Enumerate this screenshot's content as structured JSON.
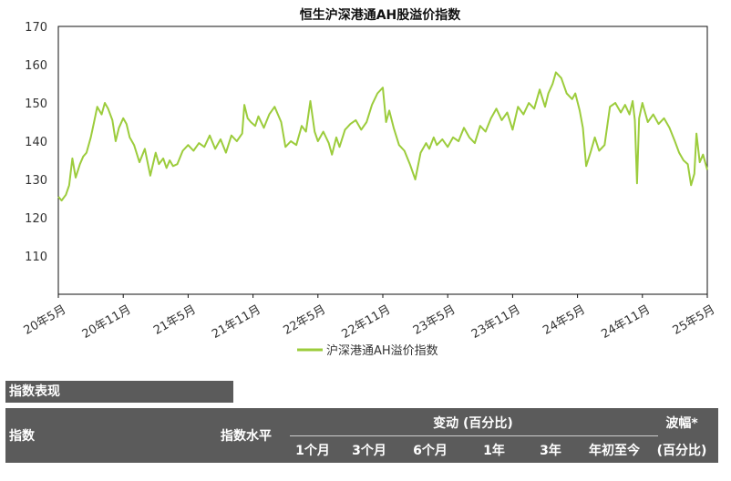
{
  "chart_data": {
    "type": "line",
    "title": "恒生沪深港通AH股溢价指数",
    "ylim": [
      100,
      170
    ],
    "yticks": [
      110,
      120,
      130,
      140,
      150,
      160,
      170
    ],
    "xlim": [
      0,
      60
    ],
    "xticks": [
      {
        "x": 0,
        "label": "20年5月"
      },
      {
        "x": 6,
        "label": "20年11月"
      },
      {
        "x": 12,
        "label": "21年5月"
      },
      {
        "x": 18,
        "label": "21年11月"
      },
      {
        "x": 24,
        "label": "22年5月"
      },
      {
        "x": 30,
        "label": "22年11月"
      },
      {
        "x": 36,
        "label": "23年5月"
      },
      {
        "x": 42,
        "label": "23年11月"
      },
      {
        "x": 48,
        "label": "24年5月"
      },
      {
        "x": 54,
        "label": "24年11月"
      },
      {
        "x": 60,
        "label": "25年5月"
      }
    ],
    "grid": false,
    "legend": "bottom-center",
    "series": [
      {
        "name": "沪深港通AH溢价指数",
        "color": "#9ccc3c",
        "x": [
          0,
          0.3,
          0.7,
          1.0,
          1.3,
          1.6,
          2.0,
          2.3,
          2.6,
          3.0,
          3.3,
          3.6,
          4.0,
          4.3,
          4.6,
          5.0,
          5.3,
          5.6,
          6.0,
          6.3,
          6.6,
          7.0,
          7.5,
          8.0,
          8.5,
          9.0,
          9.3,
          9.7,
          10.0,
          10.3,
          10.6,
          11.0,
          11.5,
          12.0,
          12.5,
          13.0,
          13.5,
          14.0,
          14.5,
          15.0,
          15.5,
          16.0,
          16.5,
          17.0,
          17.2,
          17.5,
          17.8,
          18.2,
          18.5,
          19.0,
          19.5,
          20.0,
          20.3,
          20.6,
          21.0,
          21.5,
          22.0,
          22.5,
          22.9,
          23.3,
          23.7,
          24.0,
          24.5,
          25.0,
          25.3,
          25.7,
          26.0,
          26.5,
          27.0,
          27.5,
          28.0,
          28.5,
          29.0,
          29.5,
          30.0,
          30.3,
          30.6,
          31.0,
          31.5,
          32.0,
          32.5,
          33.0,
          33.5,
          34.0,
          34.3,
          34.7,
          35.0,
          35.5,
          36.0,
          36.5,
          37.0,
          37.5,
          38.0,
          38.5,
          39.0,
          39.5,
          40.0,
          40.5,
          41.0,
          41.5,
          42.0,
          42.5,
          43.0,
          43.5,
          44.0,
          44.5,
          45.0,
          45.3,
          45.7,
          46.0,
          46.5,
          47.0,
          47.5,
          47.8,
          48.2,
          48.5,
          48.8,
          49.2,
          49.6,
          50.0,
          50.5,
          51.0,
          51.5,
          52.0,
          52.4,
          52.8,
          53.1,
          53.3,
          53.5,
          53.7,
          54.0,
          54.5,
          55.0,
          55.5,
          56.0,
          56.5,
          57.0,
          57.4,
          57.8,
          58.2,
          58.5,
          58.8,
          59.0,
          59.3,
          59.6,
          60.0
        ],
        "y": [
          125.5,
          124.5,
          126.0,
          128.5,
          135.5,
          130.5,
          134.0,
          136.0,
          137.0,
          141.0,
          145.0,
          149.0,
          147.0,
          150.0,
          148.5,
          145.5,
          140.0,
          143.5,
          146.0,
          144.5,
          141.0,
          139.0,
          134.5,
          138.0,
          131.0,
          137.0,
          134.0,
          135.5,
          133.0,
          135.0,
          133.5,
          134.0,
          137.5,
          139.0,
          137.5,
          139.5,
          138.5,
          141.5,
          138.0,
          140.5,
          137.0,
          141.5,
          140.0,
          142.0,
          149.5,
          146.0,
          145.0,
          144.0,
          146.5,
          143.5,
          147.0,
          149.0,
          147.0,
          145.0,
          138.5,
          140.0,
          139.0,
          144.0,
          142.5,
          150.5,
          142.5,
          140.0,
          142.5,
          139.5,
          136.5,
          141.0,
          138.5,
          143.0,
          144.5,
          145.5,
          143.0,
          145.0,
          149.5,
          152.5,
          154.0,
          145.0,
          148.0,
          143.5,
          139.0,
          137.5,
          134.0,
          130.0,
          137.0,
          139.5,
          138.0,
          141.0,
          139.0,
          140.5,
          138.5,
          141.0,
          140.0,
          143.5,
          141.0,
          139.5,
          144.0,
          142.5,
          146.0,
          148.5,
          145.5,
          147.5,
          143.0,
          149.0,
          147.0,
          150.0,
          148.5,
          153.5,
          149.0,
          152.5,
          155.0,
          158.0,
          156.5,
          152.5,
          151.0,
          152.5,
          148.0,
          143.5,
          133.5,
          137.0,
          141.0,
          137.5,
          139.0,
          149.0,
          150.0,
          147.5,
          149.5,
          147.0,
          150.5,
          145.5,
          129.0,
          146.0,
          150.0,
          145.0,
          147.0,
          144.5,
          146.0,
          143.5,
          140.0,
          137.0,
          135.0,
          134.0,
          128.5,
          131.5,
          142.0,
          134.5,
          136.5,
          132.5
        ]
      }
    ]
  },
  "section": {
    "title": "指数表现"
  },
  "table": {
    "col_index": "指数",
    "col_level": "指数水平",
    "col_change": "变动 (百分比)",
    "periods": [
      "1个月",
      "3个月",
      "6个月",
      "1年",
      "3年",
      "年初至今"
    ],
    "col_vol_line1": "波幅*",
    "col_vol_line2": "(百分比)"
  }
}
